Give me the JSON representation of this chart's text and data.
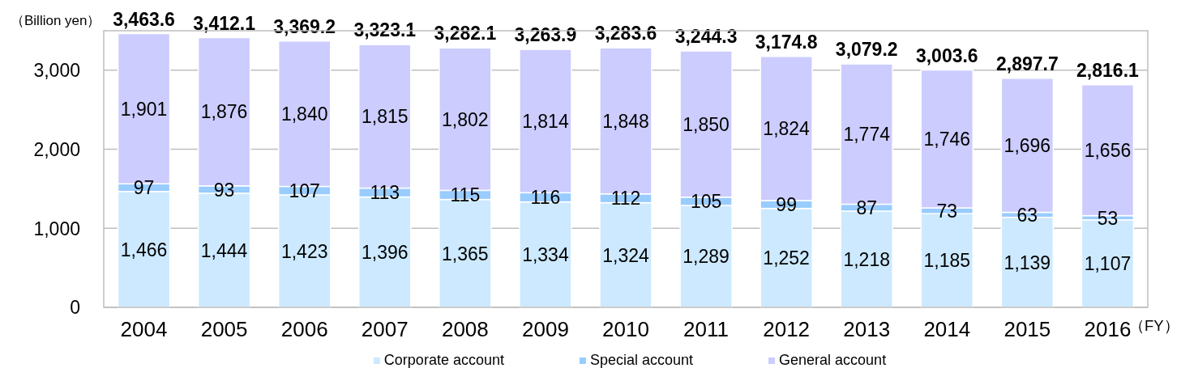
{
  "chart_data": {
    "type": "bar",
    "stacked": true,
    "ylabel": "（Billion yen）",
    "xlabel": "（FY）",
    "categories": [
      "2004",
      "2005",
      "2006",
      "2007",
      "2008",
      "2009",
      "2010",
      "2011",
      "2012",
      "2013",
      "2014",
      "2015",
      "2016"
    ],
    "series": [
      {
        "name": "Corporate account",
        "color": "#cce9ff",
        "values": [
          1466,
          1444,
          1423,
          1396,
          1365,
          1334,
          1324,
          1289,
          1252,
          1218,
          1185,
          1139,
          1107
        ],
        "value_labels": [
          "1,466",
          "1,444",
          "1,423",
          "1,396",
          "1,365",
          "1,334",
          "1,324",
          "1,289",
          "1,252",
          "1,218",
          "1,185",
          "1,139",
          "1,107"
        ]
      },
      {
        "name": "Special account",
        "color": "#99ccff",
        "values": [
          97,
          93,
          107,
          113,
          115,
          116,
          112,
          105,
          99,
          87,
          73,
          63,
          53
        ],
        "value_labels": [
          "97",
          "93",
          "107",
          "113",
          "115",
          "116",
          "112",
          "105",
          "99",
          "87",
          "73",
          "63",
          "53"
        ]
      },
      {
        "name": "General account",
        "color": "#ccccff",
        "values": [
          1901,
          1876,
          1840,
          1815,
          1802,
          1814,
          1848,
          1850,
          1824,
          1774,
          1746,
          1696,
          1656
        ],
        "value_labels": [
          "1,901",
          "1,876",
          "1,840",
          "1,815",
          "1,802",
          "1,814",
          "1,848",
          "1,850",
          "1,824",
          "1,774",
          "1,746",
          "1,696",
          "1,656"
        ]
      }
    ],
    "annotations": [
      {
        "text": "3,463.6",
        "x": "2004",
        "y": 3463.6
      },
      {
        "text": "3,412.1",
        "x": "2005",
        "y": 3412.1
      },
      {
        "text": "3,369.2",
        "x": "2006",
        "y": 3369.2
      },
      {
        "text": "3,323.1",
        "x": "2007",
        "y": 3323.1
      },
      {
        "text": "3,282.1",
        "x": "2008",
        "y": 3282.1
      },
      {
        "text": "3,263.9",
        "x": "2009",
        "y": 3263.9
      },
      {
        "text": "3,283.6",
        "x": "2010",
        "y": 3283.6
      },
      {
        "text": "3,244.3",
        "x": "2011",
        "y": 3244.3
      },
      {
        "text": "3,174.8",
        "x": "2012",
        "y": 3174.8
      },
      {
        "text": "3,079.2",
        "x": "2013",
        "y": 3079.2
      },
      {
        "text": "3,003.6",
        "x": "2014",
        "y": 3003.6
      },
      {
        "text": "2,897.7",
        "x": "2015",
        "y": 2897.7
      },
      {
        "text": "2,816.1",
        "x": "2016",
        "y": 2816.1
      }
    ],
    "ylim": [
      0,
      3500
    ],
    "yticks": [
      0,
      {
        "value": 1000,
        "label": "1,000"
      },
      {
        "value": 2000,
        "label": "2,000"
      },
      {
        "value": 3000,
        "label": "3,000"
      }
    ],
    "grid": "y",
    "legend": "bottom"
  }
}
